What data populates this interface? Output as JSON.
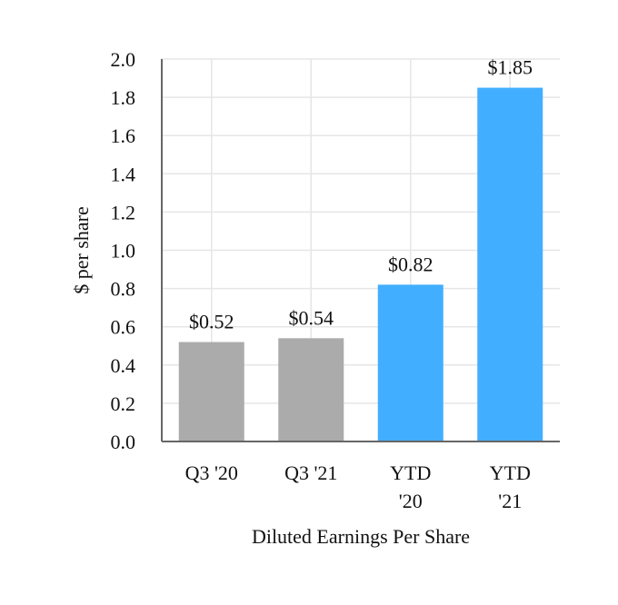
{
  "chart_data": {
    "type": "bar",
    "categories": [
      [
        "Q3 '20"
      ],
      [
        "Q3 '21"
      ],
      [
        "YTD",
        "'20"
      ],
      [
        "YTD",
        "'21"
      ]
    ],
    "values": [
      0.52,
      0.54,
      0.82,
      1.85
    ],
    "data_labels": [
      "$0.52",
      "$0.54",
      "$0.82",
      "$1.85"
    ],
    "bar_colors": [
      "#ababab",
      "#ababab",
      "#42aeff",
      "#42aeff"
    ],
    "xlabel": "Diluted Earnings Per Share",
    "ylabel": "$ per share",
    "ylim": [
      0,
      2.0
    ],
    "yticks": [
      "0.0",
      "0.2",
      "0.4",
      "0.6",
      "0.8",
      "1.0",
      "1.2",
      "1.4",
      "1.6",
      "1.8",
      "2.0"
    ],
    "grid": true
  }
}
